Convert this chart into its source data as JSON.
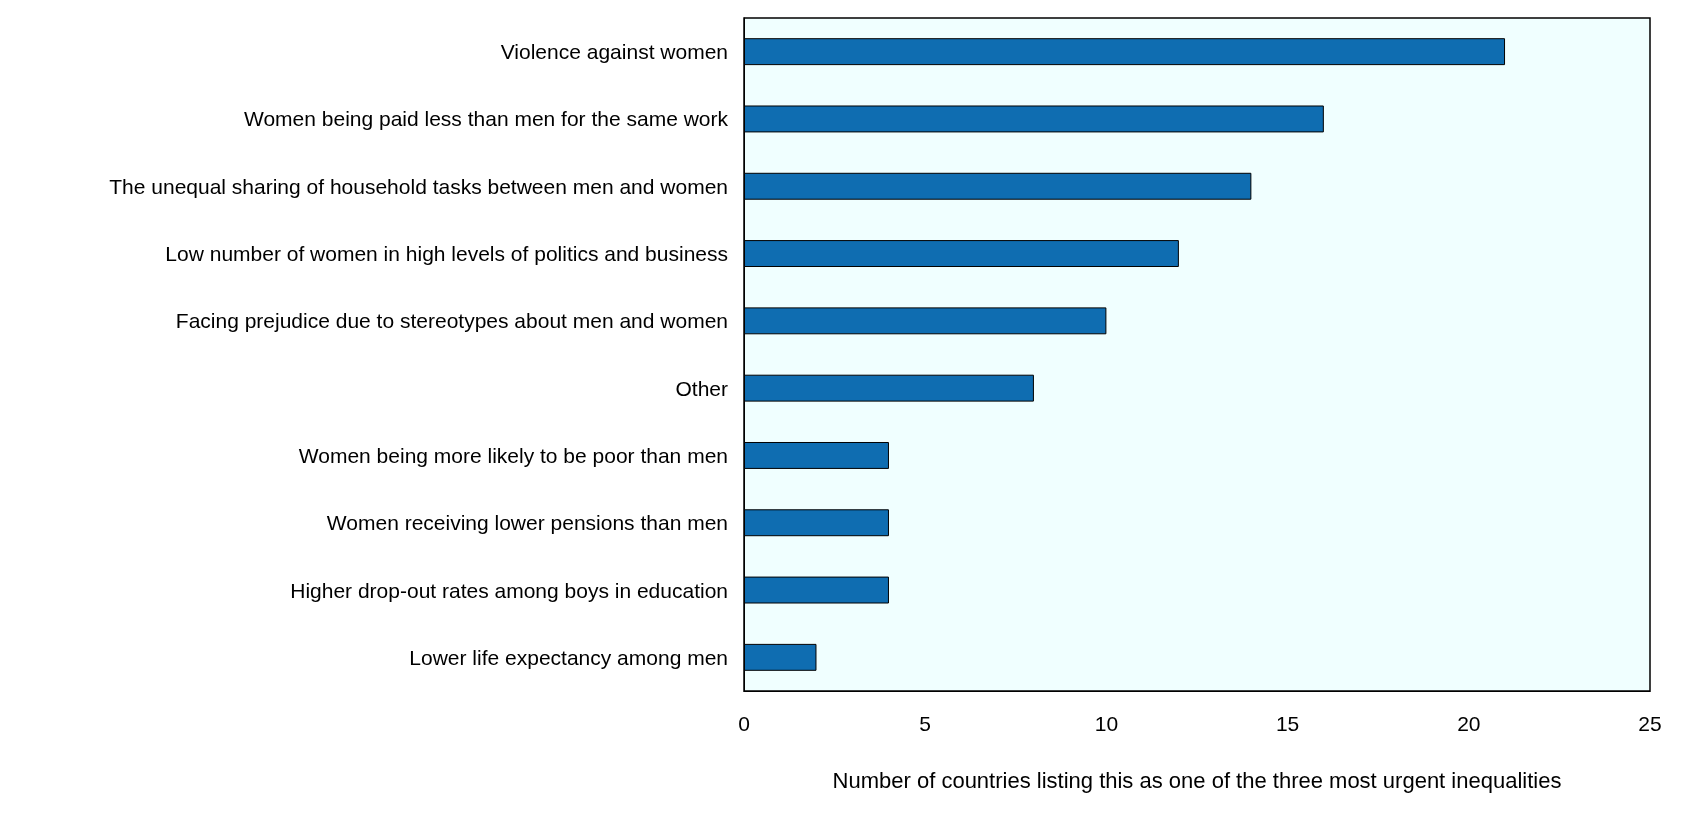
{
  "chart_data": {
    "type": "bar",
    "orientation": "horizontal",
    "xlabel": "Number of countries listing this as one of the three most urgent inequalities",
    "categories": [
      "Violence against women",
      "Women being paid less than men for the same work",
      "The unequal sharing of household tasks between men and women",
      "Low number of women in high levels of politics and business",
      "Facing prejudice due to stereotypes about men and women",
      "Other",
      "Women being more likely to be poor than men",
      "Women receiving lower pensions than men",
      "Higher drop-out rates among boys in education",
      "Lower life expectancy among men"
    ],
    "values": [
      21,
      16,
      14,
      12,
      10,
      8,
      4,
      4,
      4,
      2
    ],
    "color": "#0f6db1",
    "xlim": [
      0,
      25
    ],
    "xticks": [
      0,
      5,
      10,
      15,
      20,
      25
    ],
    "grid": false
  }
}
